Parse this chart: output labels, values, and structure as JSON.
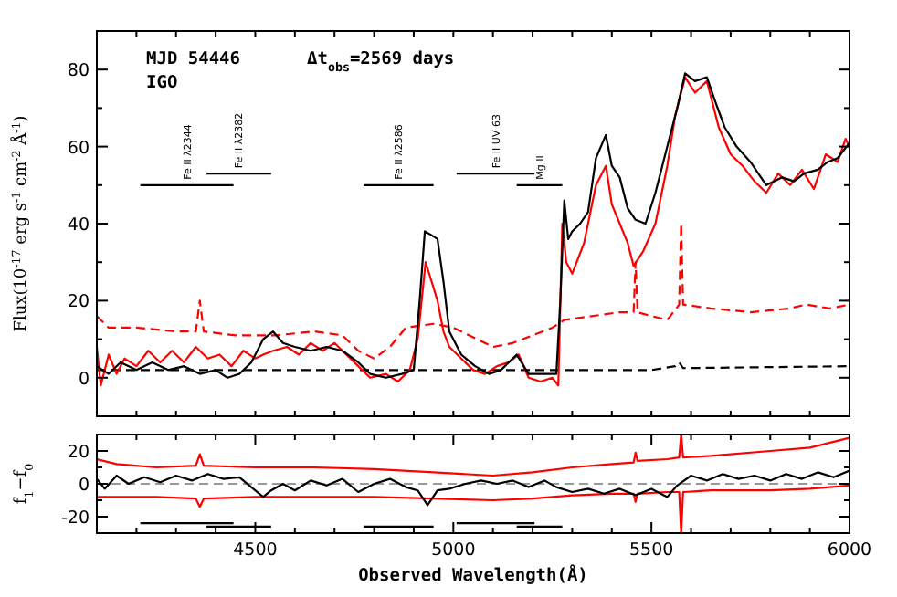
{
  "chart_data": [
    {
      "type": "line",
      "xlabel": null,
      "ylabel": "Flux(10$^{-17}$ erg s$^{-1}$ cm$^{-2}$ Å$^{-1}$)",
      "annotations": [
        "MJD 54446",
        "Δt$_{obs}$=2569 days",
        "IGO"
      ],
      "xlim": [
        4100,
        6000
      ],
      "ylim": [
        -10,
        90
      ],
      "tick_labels": "y",
      "xticks": [
        {
          "value": 4100,
          "label": null
        },
        {
          "value": 4200,
          "label": null
        },
        {
          "value": 4300,
          "label": null
        },
        {
          "value": 4400,
          "label": null
        },
        {
          "value": 4500,
          "label": null
        },
        {
          "value": 4600,
          "label": null
        },
        {
          "value": 4700,
          "label": null
        },
        {
          "value": 4800,
          "label": null
        },
        {
          "value": 4900,
          "label": null
        },
        {
          "value": 5000,
          "label": null
        },
        {
          "value": 5100,
          "label": null
        },
        {
          "value": 5200,
          "label": null
        },
        {
          "value": 5300,
          "label": null
        },
        {
          "value": 5400,
          "label": null
        },
        {
          "value": 5500,
          "label": null
        },
        {
          "value": 5600,
          "label": null
        },
        {
          "value": 5700,
          "label": null
        },
        {
          "value": 5800,
          "label": null
        },
        {
          "value": 5900,
          "label": null
        },
        {
          "value": 6000,
          "label": null
        }
      ],
      "yticks": [
        {
          "value": -10,
          "label": null
        },
        0,
        {
          "value": 10,
          "label": null
        },
        20,
        {
          "value": 30,
          "label": null
        },
        40,
        {
          "value": 50,
          "label": null
        },
        60,
        {
          "value": 70,
          "label": null
        },
        80,
        {
          "value": 90,
          "label": null
        }
      ],
      "series": [
        {
          "color": "#ff0000",
          "line_style": "dashed",
          "x": [
            4100,
            4130,
            4200,
            4300,
            4350,
            4360,
            4370,
            4450,
            4550,
            4650,
            4720,
            4760,
            4800,
            4840,
            4880,
            4950,
            5000,
            5060,
            5100,
            5150,
            5200,
            5250,
            5280,
            5350,
            5420,
            5455,
            5460,
            5465,
            5500,
            5540,
            5570,
            5575,
            5580,
            5650,
            5750,
            5850,
            5890,
            5950,
            6000
          ],
          "values": [
            16,
            13,
            13,
            12,
            12,
            20,
            12,
            11,
            11,
            12,
            11,
            7,
            5,
            8,
            13,
            14,
            13,
            10,
            8,
            9,
            11,
            13,
            15,
            16,
            17,
            17,
            30,
            17,
            16,
            15,
            19,
            40,
            19,
            18,
            17,
            18,
            19,
            18,
            19
          ]
        },
        {
          "color": "#000000",
          "line_style": "dashed",
          "x": [
            4100,
            5500,
            5560,
            5570,
            5580,
            6000
          ],
          "values": [
            2,
            2,
            3,
            4,
            2.5,
            3
          ]
        },
        {
          "color": "#ff0000",
          "line_style": "solid",
          "x": [
            4100,
            4110,
            4130,
            4150,
            4170,
            4200,
            4230,
            4260,
            4290,
            4320,
            4350,
            4380,
            4410,
            4440,
            4470,
            4500,
            4520,
            4545,
            4580,
            4610,
            4640,
            4670,
            4700,
            4730,
            4760,
            4790,
            4830,
            4860,
            4890,
            4910,
            4930,
            4945,
            4960,
            4975,
            4990,
            5020,
            5050,
            5080,
            5110,
            5140,
            5165,
            5190,
            5220,
            5250,
            5265,
            5275,
            5285,
            5300,
            5330,
            5360,
            5385,
            5400,
            5420,
            5440,
            5455,
            5480,
            5510,
            5540,
            5560,
            5585,
            5610,
            5640,
            5670,
            5700,
            5730,
            5760,
            5790,
            5820,
            5850,
            5880,
            5910,
            5940,
            5970,
            5990,
            6000
          ],
          "values": [
            8,
            -2,
            6,
            1,
            5,
            3,
            7,
            4,
            7,
            4,
            8,
            5,
            6,
            3,
            7,
            5,
            6,
            7,
            8,
            6,
            9,
            7,
            9,
            6,
            3,
            0,
            1,
            -1,
            2,
            10,
            30,
            25,
            20,
            12,
            8,
            5,
            2,
            1,
            3,
            4,
            6,
            0,
            -1,
            0,
            -2,
            40,
            30,
            27,
            35,
            50,
            55,
            45,
            40,
            35,
            29,
            33,
            40,
            55,
            68,
            78,
            74,
            77,
            65,
            58,
            55,
            51,
            48,
            53,
            50,
            54,
            49,
            58,
            56,
            62,
            60
          ]
        },
        {
          "color": "#000000",
          "line_style": "solid",
          "x": [
            4100,
            4130,
            4160,
            4200,
            4240,
            4280,
            4320,
            4360,
            4400,
            4430,
            4460,
            4490,
            4520,
            4545,
            4570,
            4600,
            4640,
            4680,
            4720,
            4760,
            4790,
            4830,
            4870,
            4900,
            4915,
            4928,
            4945,
            4960,
            4975,
            4990,
            5020,
            5055,
            5090,
            5120,
            5160,
            5190,
            5230,
            5260,
            5270,
            5280,
            5290,
            5300,
            5320,
            5340,
            5360,
            5385,
            5400,
            5420,
            5440,
            5460,
            5485,
            5510,
            5540,
            5565,
            5585,
            5610,
            5640,
            5660,
            5685,
            5715,
            5750,
            5790,
            5830,
            5860,
            5885,
            5920,
            5945,
            5970,
            6000
          ],
          "values": [
            3,
            1,
            4,
            2,
            4,
            2,
            3,
            1,
            2,
            0,
            1,
            4,
            10,
            12,
            9,
            8,
            7,
            8,
            7,
            4,
            1,
            0,
            1,
            2,
            20,
            38,
            37,
            36,
            25,
            12,
            6,
            3,
            1,
            2,
            6,
            1,
            1,
            1,
            20,
            46,
            36,
            38,
            40,
            43,
            57,
            63,
            55,
            52,
            44,
            41,
            40,
            48,
            60,
            70,
            79,
            77,
            78,
            72,
            65,
            60,
            56,
            50,
            52,
            51,
            53,
            54,
            56,
            57,
            61
          ]
        },
        {
          "name": "Fe II λ2344",
          "color": "#000000",
          "line_style": "solid",
          "x": [
            4210,
            4445
          ],
          "values": [
            50,
            50
          ]
        },
        {
          "name": "Fe II λ2382",
          "color": "#000000",
          "line_style": "solid",
          "x": [
            4377,
            4540
          ],
          "values": [
            53,
            53
          ]
        },
        {
          "name": "Fe II λ2586",
          "color": "#000000",
          "line_style": "solid",
          "x": [
            4773,
            4950
          ],
          "values": [
            50,
            50
          ]
        },
        {
          "name": "Fe II UV 63",
          "color": "#000000",
          "line_style": "solid",
          "x": [
            5008,
            5205
          ],
          "values": [
            53,
            53
          ]
        },
        {
          "name": "Mg II",
          "color": "#000000",
          "line_style": "solid",
          "x": [
            5160,
            5275
          ],
          "values": [
            50,
            50
          ]
        }
      ]
    },
    {
      "type": "line",
      "xlabel": "Observed Wavelength(Å)",
      "ylabel": "f$_{1}$−f$_{0}$",
      "xlim": [
        4100,
        6000
      ],
      "ylim": [
        -30,
        30
      ],
      "xticks": [
        {
          "value": 4100,
          "label": null
        },
        {
          "value": 4200,
          "label": null
        },
        {
          "value": 4300,
          "label": null
        },
        {
          "value": 4400,
          "label": null
        },
        4500,
        {
          "value": 4600,
          "label": null
        },
        {
          "value": 4700,
          "label": null
        },
        {
          "value": 4800,
          "label": null
        },
        {
          "value": 4900,
          "label": null
        },
        5000,
        {
          "value": 5100,
          "label": null
        },
        {
          "value": 5200,
          "label": null
        },
        {
          "value": 5300,
          "label": null
        },
        {
          "value": 5400,
          "label": null
        },
        5500,
        {
          "value": 5600,
          "label": null
        },
        {
          "value": 5700,
          "label": null
        },
        {
          "value": 5800,
          "label": null
        },
        {
          "value": 5900,
          "label": null
        },
        6000
      ],
      "yticks": [
        {
          "value": -30,
          "label": null
        },
        -20,
        {
          "value": -10,
          "label": null
        },
        0,
        {
          "value": 10,
          "label": null
        },
        20,
        {
          "value": 30,
          "label": null
        }
      ],
      "ref_lines": [
        {
          "axis": "y",
          "value": 0,
          "color": "#999999",
          "line_style": "dashed"
        }
      ],
      "series": [
        {
          "color": "#ff0000",
          "line_style": "solid",
          "x": [
            4100,
            4150,
            4250,
            4350,
            4360,
            4370,
            4500,
            4650,
            4800,
            4950,
            5100,
            5200,
            5300,
            5400,
            5455,
            5460,
            5465,
            5540,
            5570,
            5575,
            5580,
            5650,
            5800,
            5900,
            6000
          ],
          "values": [
            15,
            12,
            10,
            11,
            18,
            11,
            10,
            10,
            9,
            7,
            5,
            7,
            10,
            12,
            13,
            19,
            14,
            15,
            16,
            30,
            16,
            17,
            20,
            22,
            28
          ]
        },
        {
          "color": "#ff0000",
          "line_style": "solid",
          "x": [
            4100,
            4150,
            4250,
            4350,
            4360,
            4370,
            4500,
            4650,
            4800,
            4950,
            5100,
            5200,
            5300,
            5400,
            5455,
            5460,
            5465,
            5540,
            5570,
            5575,
            5580,
            5650,
            5800,
            5900,
            6000
          ],
          "values": [
            -8,
            -8,
            -8,
            -9,
            -14,
            -9,
            -8,
            -8,
            -8,
            -9,
            -10,
            -9,
            -7,
            -6,
            -6,
            -11,
            -6,
            -5,
            -5,
            -30,
            -5,
            -4,
            -4,
            -3,
            -1
          ]
        },
        {
          "color": "#000000",
          "line_style": "solid",
          "x": [
            4100,
            4120,
            4150,
            4180,
            4220,
            4260,
            4300,
            4340,
            4380,
            4420,
            4460,
            4490,
            4520,
            4540,
            4570,
            4600,
            4640,
            4680,
            4720,
            4760,
            4800,
            4840,
            4880,
            4910,
            4935,
            4960,
            4990,
            5030,
            5070,
            5110,
            5150,
            5190,
            5230,
            5260,
            5300,
            5340,
            5380,
            5420,
            5460,
            5500,
            5540,
            5565,
            5600,
            5640,
            5680,
            5720,
            5760,
            5800,
            5840,
            5880,
            5920,
            5960,
            6000
          ],
          "values": [
            3,
            -3,
            5,
            0,
            4,
            1,
            5,
            2,
            6,
            3,
            4,
            -2,
            -8,
            -4,
            0,
            -4,
            2,
            -1,
            3,
            -5,
            0,
            3,
            -2,
            -4,
            -13,
            -4,
            -3,
            0,
            2,
            0,
            2,
            -2,
            2,
            -2,
            -5,
            -3,
            -6,
            -3,
            -7,
            -3,
            -8,
            -1,
            5,
            2,
            6,
            3,
            5,
            2,
            6,
            3,
            7,
            4,
            8
          ]
        },
        {
          "color": "#000000",
          "line_style": "solid",
          "x": [
            4210,
            4445
          ],
          "values": [
            -24,
            -24
          ]
        },
        {
          "color": "#000000",
          "line_style": "solid",
          "x": [
            4377,
            4540
          ],
          "values": [
            -26,
            -26
          ]
        },
        {
          "color": "#000000",
          "line_style": "solid",
          "x": [
            4773,
            4950
          ],
          "values": [
            -26,
            -26
          ]
        },
        {
          "color": "#000000",
          "line_style": "solid",
          "x": [
            5008,
            5205
          ],
          "values": [
            -24,
            -24
          ]
        },
        {
          "color": "#000000",
          "line_style": "solid",
          "x": [
            5160,
            5275
          ],
          "values": [
            -26,
            -26
          ]
        }
      ]
    }
  ]
}
